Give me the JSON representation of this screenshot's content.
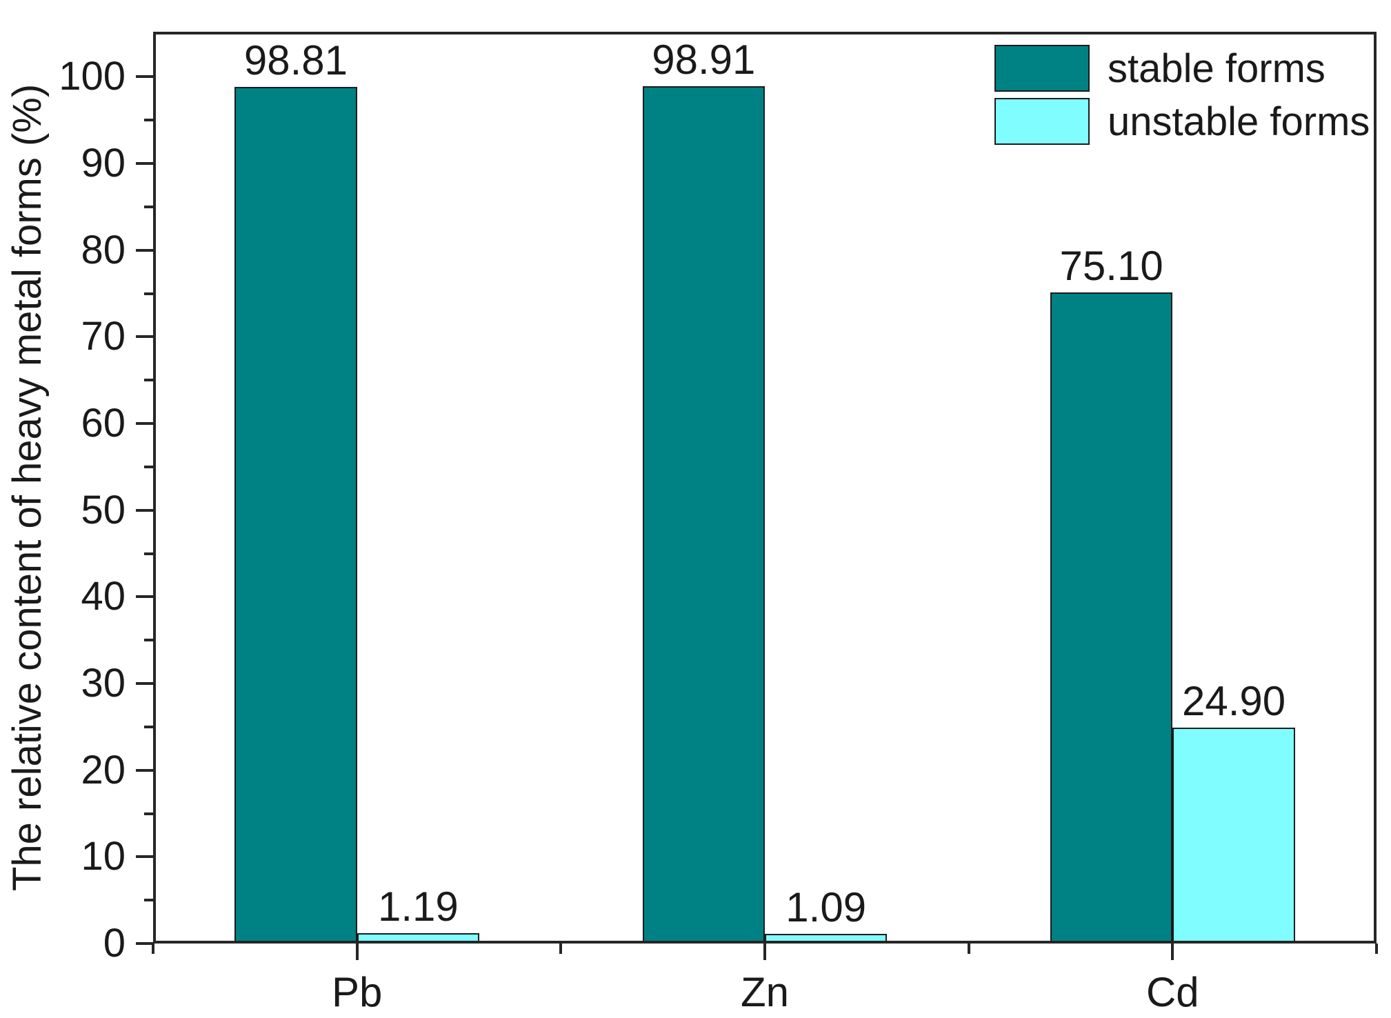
{
  "chart_data": {
    "type": "bar",
    "title": "",
    "categories": [
      "Pb",
      "Zn",
      "Cd"
    ],
    "series": [
      {
        "name": "stable forms",
        "color": "#008184",
        "values": [
          98.81,
          98.91,
          75.1
        ],
        "value_labels": [
          "98.81",
          "98.91",
          "75.10"
        ]
      },
      {
        "name": "unstable forms",
        "color": "#80fdfe",
        "values": [
          1.19,
          1.09,
          24.9
        ],
        "value_labels": [
          "1.19",
          "1.09",
          "24.90"
        ]
      }
    ],
    "xlabel": "",
    "ylabel": "The relative content of heavy metal forms (%)",
    "ylim": [
      0,
      105.2
    ],
    "yticks": [
      0,
      10,
      20,
      30,
      40,
      50,
      60,
      70,
      80,
      90,
      100
    ],
    "ytick_minor_step": 5,
    "grid": false,
    "legend_position": "upper right inside",
    "bar_outline_color": "#1c1c1c",
    "axis_color": "#262626",
    "text_color": "#1a1a1a",
    "background_color": "#ffffff"
  }
}
